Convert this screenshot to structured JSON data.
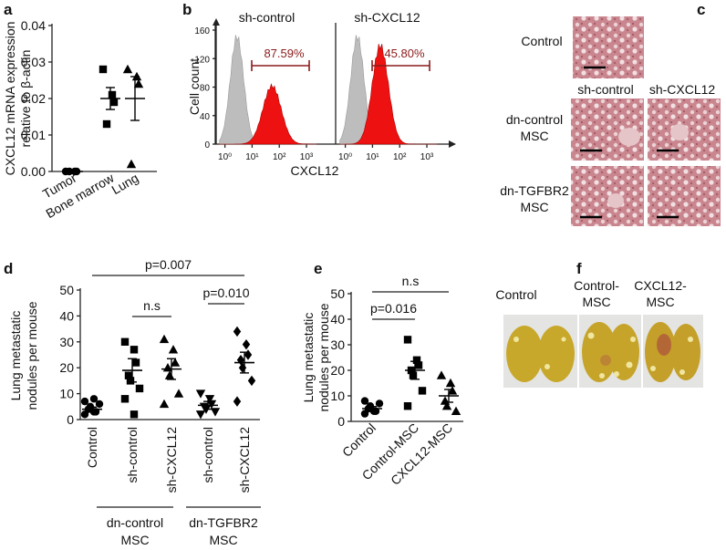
{
  "letters": [
    "a",
    "b",
    "c",
    "d",
    "e",
    "f"
  ],
  "chart_data": [
    {
      "type": "dotplot",
      "ylabel": [
        "CXCL12 mRNA expression",
        "relative to β-actin"
      ],
      "ylim": [
        0,
        0.04
      ],
      "yticks": [
        {
          "value": 0,
          "label": "0.00"
        },
        0.01,
        0.02,
        0.03,
        0.04
      ],
      "color": "#000000",
      "groups": [
        {
          "name": "Tumor",
          "marker": "circle",
          "values": [
            0,
            0,
            0,
            0
          ],
          "mean": 0,
          "sem": 0
        },
        {
          "name": "Bone marrow",
          "marker": "square",
          "values": [
            0.028,
            0.021,
            0.019,
            0.013
          ],
          "mean": 0.02,
          "sem": 0.003
        },
        {
          "name": "Lung",
          "marker": "triangle",
          "values": [
            0.028,
            0.026,
            0.024,
            0.002
          ],
          "mean": 0.02,
          "sem": 0.006
        }
      ]
    },
    {
      "type": "dotplot",
      "ylabel": [
        "Lung metastatic",
        "nodules per mouse"
      ],
      "ylim": [
        0,
        50
      ],
      "yticks": [
        0,
        10,
        20,
        30,
        40,
        50
      ],
      "color": "#000000",
      "groups": [
        {
          "name": "Control",
          "marker": "circle",
          "values": [
            2,
            3,
            3,
            4,
            5,
            6,
            7,
            8
          ],
          "mean": 4,
          "sem": 0.8
        },
        {
          "name": "sh-control",
          "marker": "square",
          "values": [
            30,
            27,
            22,
            17,
            15,
            12,
            8,
            2
          ],
          "mean": 19,
          "sem": 4.5
        },
        {
          "name": "sh-CXCL12",
          "marker": "triangle",
          "values": [
            31,
            27,
            22,
            20,
            17,
            10,
            6
          ],
          "mean": 19.5,
          "sem": 4
        },
        {
          "name": "sh-control",
          "marker": "triangle-down",
          "values": [
            10,
            8,
            6,
            5,
            4,
            3,
            2
          ],
          "mean": 5.5,
          "sem": 1.5
        },
        {
          "name": "sh-CXCL12",
          "marker": "diamond",
          "values": [
            34,
            29,
            25,
            23,
            20,
            15,
            7
          ],
          "mean": 22,
          "sem": 4
        }
      ],
      "annotations": [
        "p=0.007",
        "n.s",
        "p=0.010"
      ],
      "group_labels": [
        [
          "dn-control",
          "MSC"
        ],
        [
          "dn-TGFBR2",
          "MSC"
        ]
      ]
    },
    {
      "type": "dotplot",
      "ylabel": [
        "Lung metastatic",
        "nodules per mouse"
      ],
      "ylim": [
        0,
        50
      ],
      "yticks": [
        0,
        10,
        20,
        30,
        40,
        50
      ],
      "color": "#000000",
      "groups": [
        {
          "name": "Control",
          "marker": "circle",
          "values": [
            3,
            4,
            4,
            5,
            6,
            7,
            8
          ],
          "mean": 5,
          "sem": 0.8
        },
        {
          "name": "Control-MSC",
          "marker": "square",
          "values": [
            32,
            24,
            22,
            20,
            18,
            12,
            6
          ],
          "mean": 20,
          "sem": 3.5
        },
        {
          "name": "CXCL12-MSC",
          "marker": "triangle",
          "values": [
            18,
            15,
            12,
            8,
            6,
            4
          ],
          "mean": 10,
          "sem": 2.5
        }
      ],
      "annotations": [
        "n.s",
        "p=0.016"
      ]
    }
  ],
  "flow": {
    "ylabel": "Cell count",
    "xlabel": "CXCL12",
    "ylim": [
      0,
      160
    ],
    "yticks": [
      0,
      40,
      80,
      120,
      160
    ],
    "xlim": [
      0.6,
      2000
    ],
    "xticks": [
      {
        "value": 1,
        "label": "10⁰"
      },
      {
        "value": 10,
        "label": "10¹"
      },
      {
        "value": 100,
        "label": "10²"
      },
      {
        "value": 1000,
        "label": "10³"
      }
    ],
    "panels": [
      {
        "title": "sh-control",
        "gate_label": "87.59%"
      },
      {
        "title": "sh-CXCL12",
        "gate_label": "45.80%"
      }
    ]
  },
  "histology": {
    "row_labels": [
      [
        "Control"
      ],
      [
        "dn-control",
        "MSC"
      ],
      [
        "dn-TGFBR2",
        "MSC"
      ]
    ],
    "column_labels": [
      "sh-control",
      "sh-CXCL12"
    ]
  },
  "photos": {
    "labels": [
      [
        "Control"
      ],
      [
        "Control-",
        "MSC"
      ],
      [
        "CXCL12-",
        "MSC"
      ]
    ]
  }
}
